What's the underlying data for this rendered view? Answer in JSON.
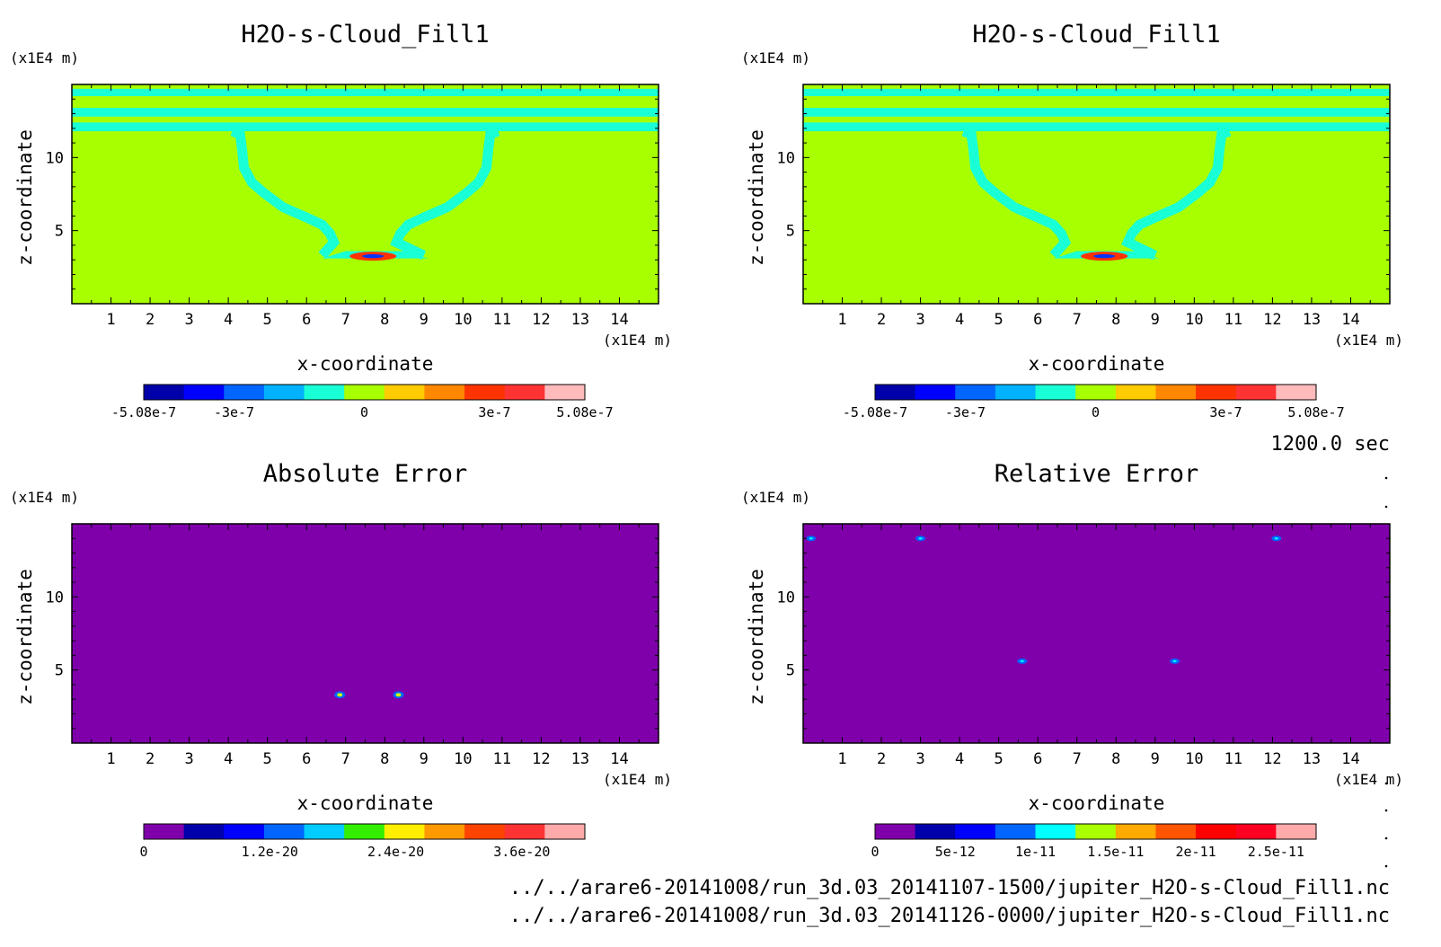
{
  "time_label": "1200.0 sec",
  "files": [
    "../../arare6-20141008/run_3d.03_20141107-1500/jupiter_H2O-s-Cloud_Fill1.nc",
    "../../arare6-20141008/run_3d.03_20141126-0000/jupiter_H2O-s-Cloud_Fill1.nc"
  ],
  "colors": {
    "background_field": "#a8ff00",
    "contour_cyan": "#19ffd6",
    "error_background": "#7f00aa"
  },
  "chart_data": [
    {
      "type": "heatmap",
      "title": "H2O-s-Cloud_Fill1",
      "xlabel": "x-coordinate",
      "ylabel": "z-coordinate",
      "x_unit": "(x1E4 m)",
      "y_unit": "(x1E4 m)",
      "xlim": [
        0,
        15
      ],
      "ylim": [
        0,
        15
      ],
      "xticks": [
        "1",
        "2",
        "3",
        "4",
        "5",
        "6",
        "7",
        "8",
        "9",
        "10",
        "11",
        "12",
        "13",
        "14"
      ],
      "yticks": [
        "5",
        "10"
      ],
      "colorbar": {
        "colors": [
          "#0000aa",
          "#0000ff",
          "#0066ff",
          "#00b2ff",
          "#19ffd6",
          "#a8ff00",
          "#ffcc00",
          "#ff8800",
          "#ff3300",
          "#ff3333",
          "#ffbbbb"
        ],
        "labels": [
          "-5.08e-7",
          "-3e-7",
          "0",
          "3e-7",
          "5.08e-7"
        ],
        "label_values": [
          -5.08e-07,
          -3e-07,
          0,
          3e-07,
          5.08e-07
        ],
        "range": [
          -5.08e-07,
          5.08e-07
        ]
      }
    },
    {
      "type": "heatmap",
      "title": "H2O-s-Cloud_Fill1",
      "xlabel": "x-coordinate",
      "ylabel": "z-coordinate",
      "x_unit": "(x1E4 m)",
      "y_unit": "(x1E4 m)",
      "xlim": [
        0,
        15
      ],
      "ylim": [
        0,
        15
      ],
      "xticks": [
        "1",
        "2",
        "3",
        "4",
        "5",
        "6",
        "7",
        "8",
        "9",
        "10",
        "11",
        "12",
        "13",
        "14"
      ],
      "yticks": [
        "5",
        "10"
      ],
      "colorbar": {
        "colors": [
          "#0000aa",
          "#0000ff",
          "#0066ff",
          "#00b2ff",
          "#19ffd6",
          "#a8ff00",
          "#ffcc00",
          "#ff8800",
          "#ff3300",
          "#ff3333",
          "#ffbbbb"
        ],
        "labels": [
          "-5.08e-7",
          "-3e-7",
          "0",
          "3e-7",
          "5.08e-7"
        ],
        "label_values": [
          -5.08e-07,
          -3e-07,
          0,
          3e-07,
          5.08e-07
        ],
        "range": [
          -5.08e-07,
          5.08e-07
        ]
      }
    },
    {
      "type": "heatmap",
      "title": "Absolute Error",
      "xlabel": "x-coordinate",
      "ylabel": "z-coordinate",
      "x_unit": "(x1E4 m)",
      "y_unit": "(x1E4 m)",
      "xlim": [
        0,
        15
      ],
      "ylim": [
        0,
        15
      ],
      "xticks": [
        "1",
        "2",
        "3",
        "4",
        "5",
        "6",
        "7",
        "8",
        "9",
        "10",
        "11",
        "12",
        "13",
        "14"
      ],
      "yticks": [
        "5",
        "10"
      ],
      "hotspots": [
        {
          "x": 6.85,
          "z": 3.3
        },
        {
          "x": 8.35,
          "z": 3.3
        }
      ],
      "colorbar": {
        "colors": [
          "#7f00aa",
          "#0000aa",
          "#0000ff",
          "#0066ff",
          "#00ccff",
          "#33ee00",
          "#ffee00",
          "#ff9900",
          "#ff4400",
          "#ff3333",
          "#ffaaaa"
        ],
        "labels": [
          "0",
          "1.2e-20",
          "2.4e-20",
          "3.6e-20"
        ],
        "label_values": [
          0,
          1.2e-20,
          2.4e-20,
          3.6e-20
        ],
        "range": [
          0,
          4.2e-20
        ]
      }
    },
    {
      "type": "heatmap",
      "title": "Relative Error",
      "xlabel": "x-coordinate",
      "ylabel": "z-coordinate",
      "x_unit": "(x1E4 m)",
      "y_unit": "(x1E4 m)",
      "xlim": [
        0,
        15
      ],
      "ylim": [
        0,
        15
      ],
      "xticks": [
        "1",
        "2",
        "3",
        "4",
        "5",
        "6",
        "7",
        "8",
        "9",
        "10",
        "11",
        "12",
        "13",
        "14"
      ],
      "yticks": [
        "5",
        "10"
      ],
      "hotspots": [
        {
          "x": 0.2,
          "z": 14.0
        },
        {
          "x": 3.0,
          "z": 14.0
        },
        {
          "x": 12.1,
          "z": 14.0
        },
        {
          "x": 5.6,
          "z": 5.6
        },
        {
          "x": 9.5,
          "z": 5.6
        }
      ],
      "colorbar": {
        "colors": [
          "#7f00aa",
          "#0000aa",
          "#0000ff",
          "#0066ff",
          "#00ffff",
          "#aaff00",
          "#ffaa00",
          "#ff5500",
          "#ff0000",
          "#ff0022",
          "#ffaaaa"
        ],
        "labels": [
          "0",
          "5e-12",
          "1e-11",
          "1.5e-11",
          "2e-11",
          "2.5e-11"
        ],
        "label_values": [
          0,
          5e-12,
          1e-11,
          1.5e-11,
          2e-11,
          2.5e-11
        ],
        "range": [
          0,
          2.75e-11
        ]
      }
    }
  ]
}
